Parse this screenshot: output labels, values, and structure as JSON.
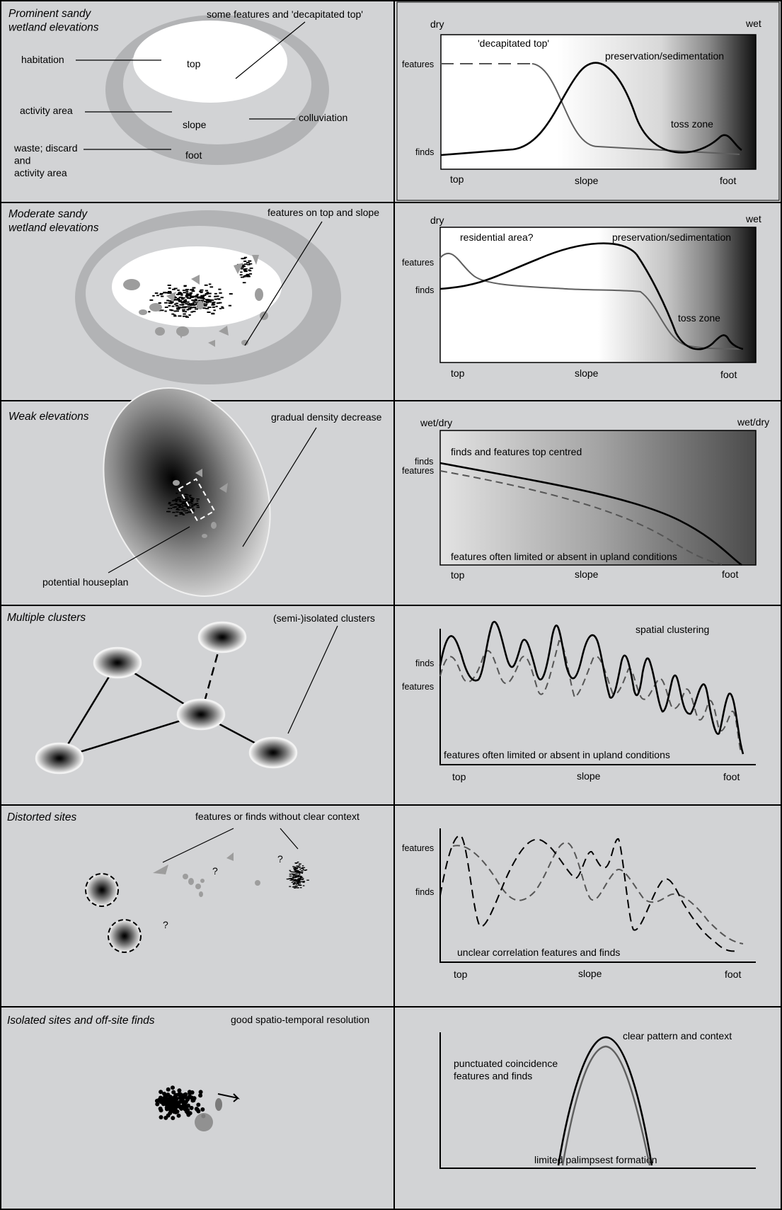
{
  "colors": {
    "panel_bg": "#d2d3d5",
    "border": "#000000",
    "light_grey": "#b2b3b5",
    "curve_grey": "#5f5f5f"
  },
  "rows": [
    {
      "left": {
        "title": "Prominent sandy\nwetland elevations",
        "labels": {
          "top_note": "some features and 'decapitated top'",
          "top": "top",
          "slope": "slope",
          "foot": "foot",
          "habitation": "habitation",
          "activity": "activity area",
          "colluviation": "colluviation",
          "waste": "waste; discard\nand\nactivity area"
        }
      },
      "right": {
        "corner_left": "dry",
        "corner_right": "wet",
        "y_labels": [
          "features",
          "finds"
        ],
        "x_labels": [
          "top",
          "slope",
          "foot"
        ],
        "annotations": [
          "'decapitated top'",
          "preservation/sedimentation",
          "toss zone"
        ]
      }
    },
    {
      "left": {
        "title": "Moderate sandy\nwetland elevations",
        "note": "features on top and slope"
      },
      "right": {
        "corner_left": "dry",
        "corner_right": "wet",
        "y_labels": [
          "features",
          "finds"
        ],
        "x_labels": [
          "top",
          "slope",
          "foot"
        ],
        "annotations": [
          "residential area?",
          "preservation/sedimentation",
          "toss zone"
        ]
      }
    },
    {
      "left": {
        "title": "Weak elevations",
        "note": "gradual density decrease",
        "houseplan": "potential houseplan"
      },
      "right": {
        "corner_left": "wet/dry",
        "corner_right": "wet/dry",
        "y_labels": [
          "finds",
          "features"
        ],
        "x_labels": [
          "top",
          "slope",
          "foot"
        ],
        "annotations": [
          "finds and features top centred",
          "features often limited or absent in upland conditions"
        ]
      }
    },
    {
      "left": {
        "title": "Multiple clusters",
        "note": "(semi-)isolated clusters"
      },
      "right": {
        "y_labels": [
          "finds",
          "features"
        ],
        "x_labels": [
          "top",
          "slope",
          "foot"
        ],
        "annotations": [
          "spatial clustering",
          "features often limited or absent in upland conditions"
        ]
      }
    },
    {
      "left": {
        "title": "Distorted sites",
        "note": "features or finds without clear context",
        "question": "?"
      },
      "right": {
        "y_labels": [
          "features",
          "finds"
        ],
        "x_labels": [
          "top",
          "slope",
          "foot"
        ],
        "annotations": [
          "unclear correlation features and finds"
        ]
      }
    },
    {
      "left": {
        "title": "Isolated sites and off-site finds",
        "note": "good spatio-temporal resolution"
      },
      "right": {
        "annotations": [
          "clear pattern and context",
          "punctuated coincidence\nfeatures and finds",
          "limited palimpsest formation"
        ]
      }
    }
  ]
}
